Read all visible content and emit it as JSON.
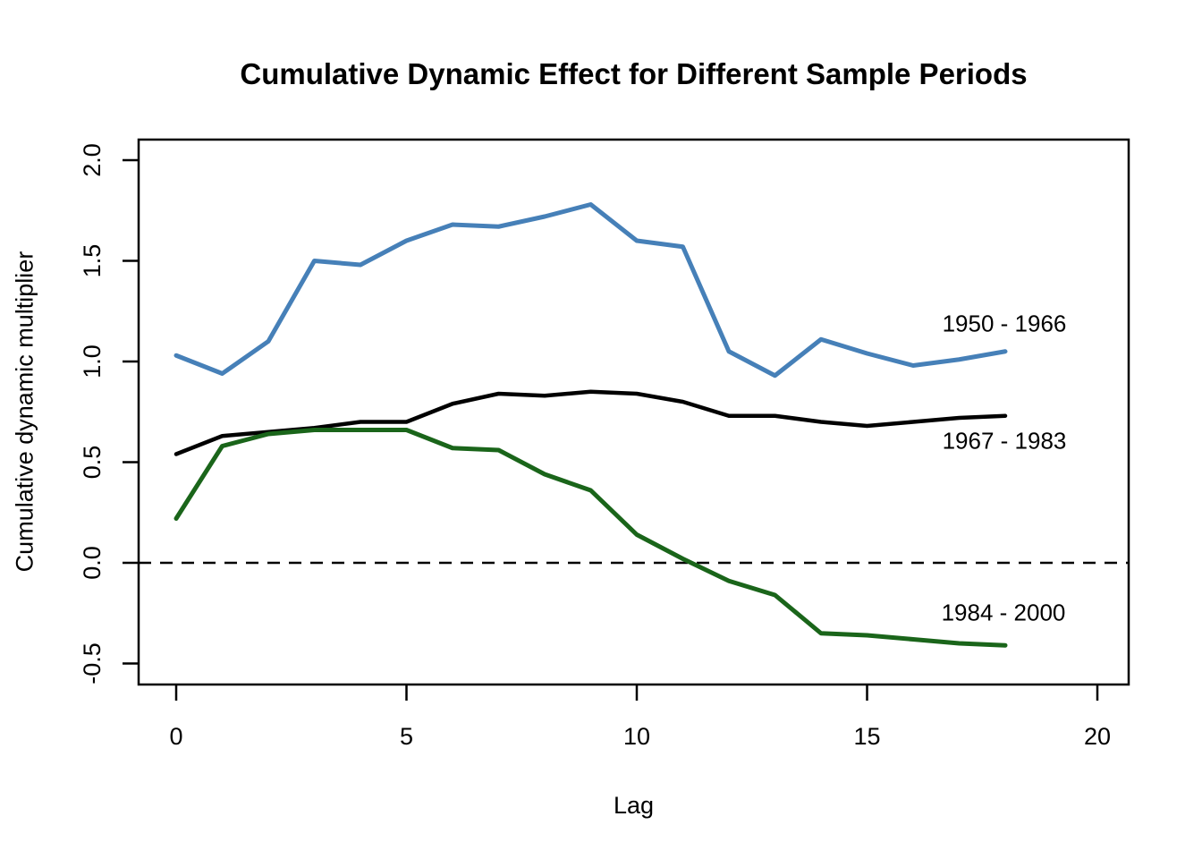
{
  "title": "Cumulative Dynamic Effect for Different Sample Periods",
  "chart_data": {
    "type": "line",
    "x": [
      0,
      1,
      2,
      3,
      4,
      5,
      6,
      7,
      8,
      9,
      10,
      11,
      12,
      13,
      14,
      15,
      16,
      17,
      18
    ],
    "series": [
      {
        "name": "1950 - 1966",
        "color": "#4680B8",
        "values": [
          1.03,
          0.94,
          1.1,
          1.5,
          1.48,
          1.6,
          1.68,
          1.67,
          1.72,
          1.78,
          1.6,
          1.57,
          1.05,
          0.93,
          1.11,
          1.04,
          0.98,
          1.01,
          1.05
        ]
      },
      {
        "name": "1967 - 1983",
        "color": "#000000",
        "values": [
          0.54,
          0.63,
          0.65,
          0.67,
          0.7,
          0.7,
          0.79,
          0.84,
          0.83,
          0.85,
          0.84,
          0.8,
          0.73,
          0.73,
          0.7,
          0.68,
          0.7,
          0.72,
          0.73
        ]
      },
      {
        "name": "1984 - 2000",
        "color": "#1A651A",
        "values": [
          0.22,
          0.58,
          0.64,
          0.66,
          0.66,
          0.66,
          0.57,
          0.56,
          0.44,
          0.36,
          0.14,
          0.02,
          -0.09,
          -0.16,
          -0.35,
          -0.36,
          -0.38,
          -0.4,
          -0.41
        ]
      }
    ],
    "title": "Cumulative Dynamic Effect for Different Sample Periods",
    "xlabel": "Lag",
    "ylabel": "Cumulative dynamic multiplier",
    "xlim": [
      0,
      20
    ],
    "ylim": [
      -0.5,
      2.0
    ],
    "x_ticks": [
      0,
      5,
      10,
      15,
      20
    ],
    "x_tick_labels": [
      "0",
      "5",
      "10",
      "15",
      "20"
    ],
    "y_ticks": [
      -0.5,
      0.0,
      0.5,
      1.0,
      1.5,
      2.0
    ],
    "y_tick_labels": [
      "-0.5",
      "0.0",
      "0.5",
      "1.0",
      "1.5",
      "2.0"
    ],
    "reference_line_y": 0,
    "reference_line_style": "dashed",
    "grid": false,
    "legend_position": "inline-annotations-right",
    "axis_color": "#000000",
    "background_color": "#FFFFFF"
  }
}
